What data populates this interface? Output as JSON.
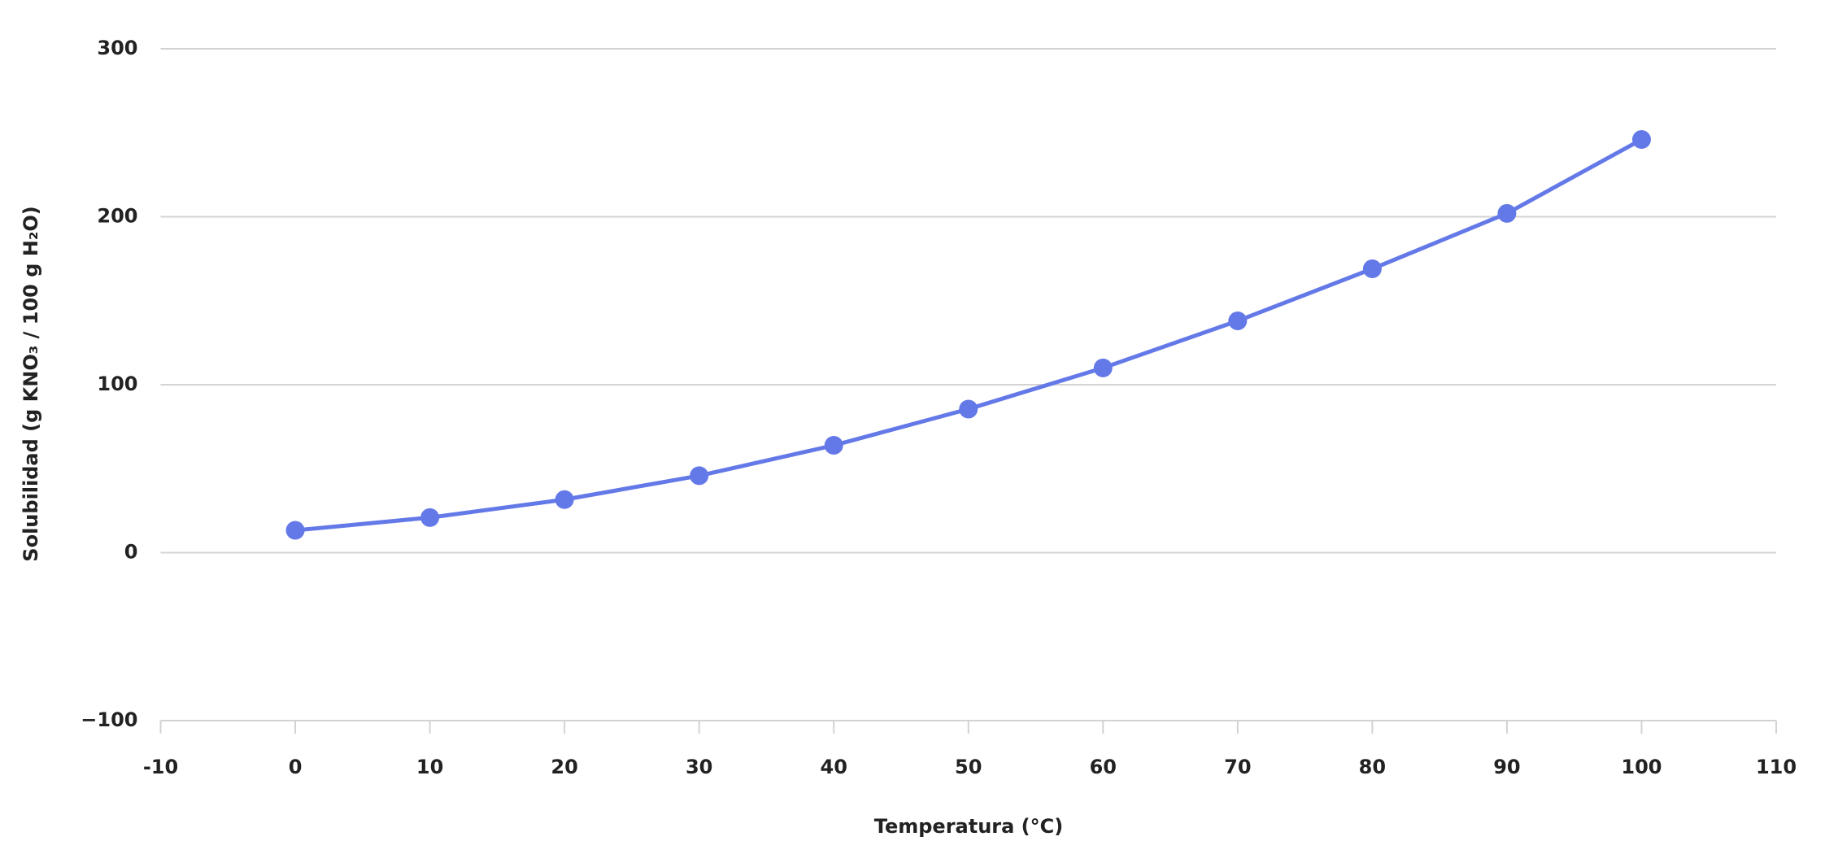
{
  "chart_data": {
    "type": "line",
    "x_label": "Temperatura (°C)",
    "y_label": "Solubilidad (g KNO₃ / 100 g H₂O)",
    "x": [
      0,
      10,
      20,
      30,
      40,
      50,
      60,
      70,
      80,
      90,
      100
    ],
    "values": [
      13.3,
      20.9,
      31.6,
      45.8,
      63.9,
      85.5,
      110,
      138,
      169,
      202,
      246
    ],
    "color": "#6479e8",
    "xlim": [
      -10,
      110
    ],
    "xticks": [
      -10,
      0,
      10,
      20,
      30,
      40,
      50,
      60,
      70,
      80,
      90,
      100,
      110
    ],
    "ylim": [
      -100,
      300
    ],
    "yticks": [
      {
        "value": -100,
        "label": "−100"
      },
      0,
      100,
      200,
      300
    ],
    "grid": true
  }
}
